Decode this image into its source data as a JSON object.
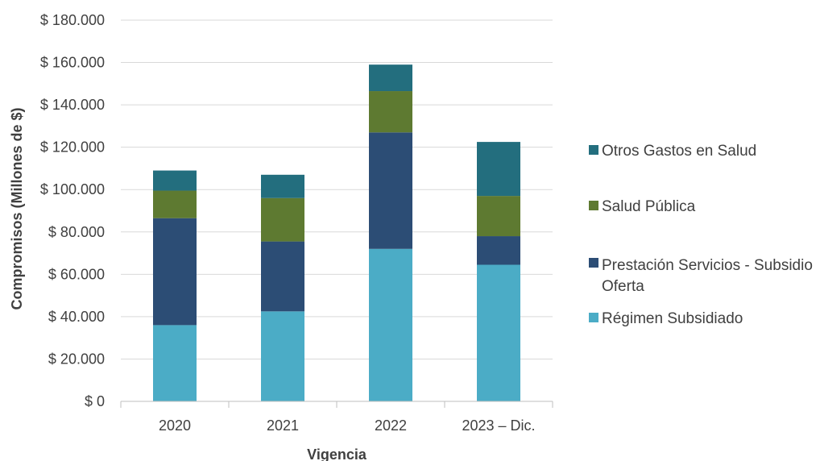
{
  "chart_data": {
    "type": "bar",
    "stacked": true,
    "categories": [
      "2020",
      "2021",
      "2022",
      "2023 – Dic."
    ],
    "series": [
      {
        "name": "Régimen Subsidiado",
        "color": "#4BACC6",
        "values": [
          36000,
          42500,
          72000,
          64500
        ]
      },
      {
        "name": "Prestación Servicios - Subsidio Oferta",
        "color": "#2C4D75",
        "values": [
          50500,
          33000,
          55000,
          13500
        ]
      },
      {
        "name": "Salud Pública",
        "color": "#5E7A31",
        "values": [
          13000,
          20500,
          19500,
          19000
        ]
      },
      {
        "name": "Otros Gastos en Salud",
        "color": "#236E7E",
        "values": [
          9500,
          11000,
          12500,
          25500
        ]
      }
    ],
    "legend_order": [
      "Otros Gastos en Salud",
      "Salud Pública",
      "Prestación Servicios - Subsidio Oferta",
      "Régimen Subsidiado"
    ],
    "legend_position": "right",
    "xlabel": "Vigencia",
    "ylabel": "Compromisos (Millones de $)",
    "ylim": [
      0,
      180000
    ],
    "yticks": [
      0,
      20000,
      40000,
      60000,
      80000,
      100000,
      120000,
      140000,
      160000,
      180000
    ],
    "ytick_labels": [
      "$ 0",
      "$ 20.000",
      "$ 40.000",
      "$ 60.000",
      "$ 80.000",
      "$ 100.000",
      "$ 120.000",
      "$ 140.000",
      "$ 160.000",
      "$ 180.000"
    ],
    "grid": true,
    "gridline_color": "#D9D9D9"
  }
}
